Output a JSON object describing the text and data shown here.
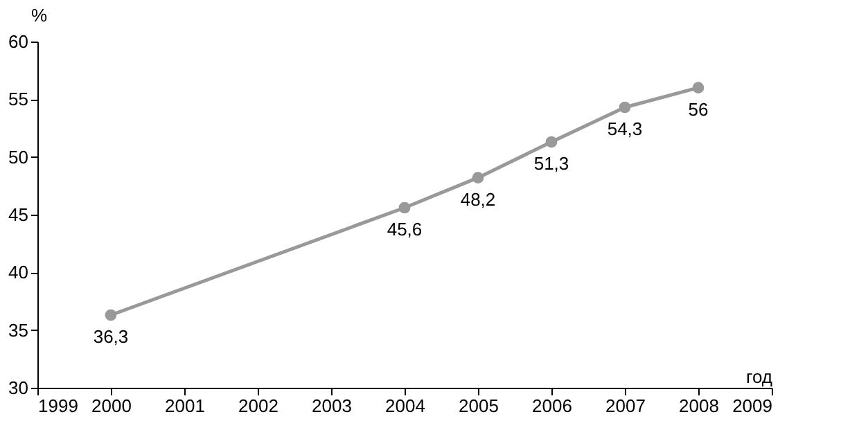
{
  "chart_data": {
    "type": "line",
    "xlabel": "год",
    "ylabel": "%",
    "x": [
      2000,
      2004,
      2005,
      2006,
      2007,
      2008
    ],
    "series": [
      {
        "color": "#999999",
        "values": [
          36.3,
          45.6,
          48.2,
          51.3,
          54.3,
          56
        ],
        "value_labels": [
          "36,3",
          "45,6",
          "48,2",
          "51,3",
          "54,3",
          "56"
        ]
      }
    ],
    "xlim": [
      1999,
      2009
    ],
    "xticks": [
      1999,
      2000,
      2001,
      2002,
      2003,
      2004,
      2005,
      2006,
      2007,
      2008,
      2009
    ],
    "ylim": [
      30,
      60
    ],
    "yticks": [
      30,
      35,
      40,
      45,
      50,
      55,
      60
    ],
    "marker": "circle",
    "line_style": "solid",
    "grid": false
  }
}
